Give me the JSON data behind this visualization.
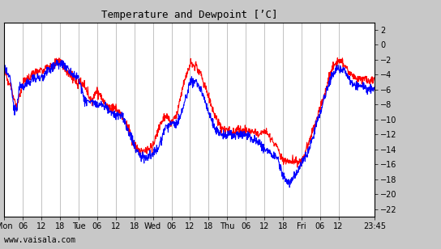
{
  "title": "Temperature and Dewpoint [’C]",
  "ylabel_right": true,
  "yticks": [
    2,
    0,
    -2,
    -4,
    -6,
    -8,
    -10,
    -12,
    -14,
    -16,
    -18,
    -20,
    -22
  ],
  "ylim": [
    -23,
    3
  ],
  "bg_color": "#c8c8c8",
  "plot_bg_color": "#ffffff",
  "grid_color": "#aaaaaa",
  "temp_color": "#ff0000",
  "dewp_color": "#0000ff",
  "linewidth": 0.8,
  "watermark": "www.vaisala.com",
  "xtick_labels": [
    "Mon",
    "06",
    "12",
    "18",
    "Tue",
    "06",
    "12",
    "18",
    "Wed",
    "06",
    "12",
    "18",
    "Thu",
    "06",
    "12",
    "18",
    "Fri",
    "06",
    "12",
    "23:45"
  ],
  "xtick_positions": [
    0,
    6,
    12,
    18,
    24,
    30,
    36,
    42,
    48,
    54,
    60,
    66,
    72,
    78,
    84,
    90,
    96,
    102,
    108,
    119.75
  ],
  "total_hours": 119.75
}
